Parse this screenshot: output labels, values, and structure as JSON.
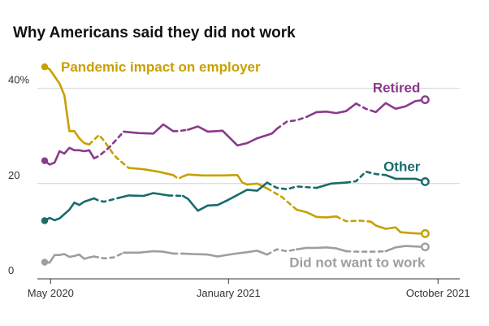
{
  "chart_data": {
    "type": "line",
    "title": "Why Americans said they did not work",
    "xlabel": "",
    "ylabel": "",
    "ylim": [
      0,
      50
    ],
    "grid": true,
    "legend": "direct labels at line ends",
    "yticks": [
      {
        "value": 0,
        "label": "0"
      },
      {
        "value": 20,
        "label": "20"
      },
      {
        "value": 40,
        "label": "40%"
      }
    ],
    "xticks": [
      {
        "week": 1.2,
        "label": "May 2020"
      },
      {
        "week": 37.2,
        "label": "January 2021"
      },
      {
        "week": 79.6,
        "label": "October 2021"
      }
    ],
    "xlim": [
      0,
      84
    ],
    "series": [
      {
        "name": "Pandemic impact on employer",
        "color": "#c9a000",
        "labelAt": "start",
        "points": [
          [
            0,
            44.5
          ],
          [
            1,
            44
          ],
          [
            2,
            42.5
          ],
          [
            3,
            41
          ],
          [
            4,
            38.5
          ],
          [
            5,
            31
          ],
          [
            6,
            31
          ],
          [
            7,
            29.5
          ],
          [
            8,
            28.5
          ],
          [
            9,
            28.2
          ],
          [
            11,
            30.2
          ],
          [
            12,
            29
          ],
          [
            13,
            27.5
          ],
          [
            14,
            26
          ],
          [
            15,
            25
          ],
          [
            17,
            23.3
          ],
          [
            20,
            23
          ],
          [
            23,
            22.5
          ],
          [
            26,
            21.8
          ],
          [
            27,
            21
          ],
          [
            28,
            21.5
          ],
          [
            29,
            21.9
          ],
          [
            32,
            21.7
          ],
          [
            36,
            21.7
          ],
          [
            39,
            21.8
          ],
          [
            40,
            20.2
          ],
          [
            41,
            19.8
          ],
          [
            43,
            20
          ],
          [
            45,
            19
          ],
          [
            48,
            17.2
          ],
          [
            51,
            14.5
          ],
          [
            53,
            14
          ],
          [
            55,
            13
          ],
          [
            57,
            12.9
          ],
          [
            59,
            13.1
          ],
          [
            61,
            12.1
          ],
          [
            64,
            12.2
          ],
          [
            66,
            12
          ],
          [
            67,
            11.2
          ],
          [
            69,
            10.5
          ],
          [
            71,
            10.8
          ],
          [
            72,
            9.8
          ],
          [
            74,
            9.6
          ],
          [
            76,
            9.5
          ],
          [
            77,
            9.5
          ]
        ],
        "dashed": [
          [
            9,
            17
          ],
          [
            26,
            28
          ],
          [
            46,
            50
          ],
          [
            60,
            66
          ]
        ]
      },
      {
        "name": "Retired",
        "color": "#8a3a8c",
        "labelAt": "end",
        "points": [
          [
            0,
            24.8
          ],
          [
            1,
            24
          ],
          [
            2,
            24.4
          ],
          [
            3,
            26.8
          ],
          [
            4,
            26.3
          ],
          [
            5,
            27.5
          ],
          [
            6,
            27
          ],
          [
            7,
            27
          ],
          [
            8,
            26.8
          ],
          [
            9,
            27
          ],
          [
            10,
            25.3
          ],
          [
            11,
            25.8
          ],
          [
            13,
            27.5
          ],
          [
            16,
            30.9
          ],
          [
            19,
            30.6
          ],
          [
            22,
            30.5
          ],
          [
            24,
            32.4
          ],
          [
            26,
            31
          ],
          [
            27,
            31
          ],
          [
            29,
            31.3
          ],
          [
            31,
            32
          ],
          [
            33,
            30.9
          ],
          [
            36,
            31.1
          ],
          [
            39,
            28
          ],
          [
            41,
            28.5
          ],
          [
            43,
            29.5
          ],
          [
            46,
            30.5
          ],
          [
            47,
            31.5
          ],
          [
            49,
            33
          ],
          [
            51,
            33.3
          ],
          [
            53,
            34
          ],
          [
            55,
            35
          ],
          [
            57,
            35.1
          ],
          [
            59,
            34.8
          ],
          [
            61,
            35.2
          ],
          [
            63,
            36.8
          ],
          [
            65,
            35.7
          ],
          [
            67,
            35
          ],
          [
            69,
            36.9
          ],
          [
            71,
            35.7
          ],
          [
            73,
            36.2
          ],
          [
            75,
            37.3
          ],
          [
            77,
            37.6
          ]
        ],
        "dashed": [
          [
            10,
            15
          ],
          [
            26,
            28
          ],
          [
            47,
            52
          ],
          [
            63,
            67
          ]
        ]
      },
      {
        "name": "Other",
        "color": "#1a6b6b",
        "labelAt": "end",
        "points": [
          [
            0,
            12.2
          ],
          [
            1,
            12.8
          ],
          [
            2,
            12.3
          ],
          [
            3,
            12.7
          ],
          [
            5,
            14.5
          ],
          [
            6,
            16
          ],
          [
            7,
            15.5
          ],
          [
            8,
            16.2
          ],
          [
            10,
            16.9
          ],
          [
            11,
            16.4
          ],
          [
            12,
            16.2
          ],
          [
            15,
            17
          ],
          [
            17,
            17.5
          ],
          [
            20,
            17.4
          ],
          [
            22,
            18
          ],
          [
            25,
            17.5
          ],
          [
            28,
            17.4
          ],
          [
            29,
            16.8
          ],
          [
            31,
            14.3
          ],
          [
            33,
            15.4
          ],
          [
            35,
            15.5
          ],
          [
            37,
            16.5
          ],
          [
            41,
            18.7
          ],
          [
            43,
            18.5
          ],
          [
            45,
            20.2
          ],
          [
            47,
            19.1
          ],
          [
            49,
            18.8
          ],
          [
            51,
            19.4
          ],
          [
            55,
            19.1
          ],
          [
            58,
            20
          ],
          [
            61,
            20.2
          ],
          [
            63,
            20.5
          ],
          [
            65,
            22.5
          ],
          [
            67,
            22
          ],
          [
            69,
            21.8
          ],
          [
            71,
            21
          ],
          [
            73,
            21
          ],
          [
            75,
            21
          ],
          [
            77,
            20.4
          ]
        ],
        "dashed": [
          [
            10,
            15
          ],
          [
            26,
            28
          ],
          [
            46,
            53
          ],
          [
            62,
            68
          ]
        ]
      },
      {
        "name": "Did not want to work",
        "color": "#9e9e9e",
        "labelAt": "end",
        "points": [
          [
            0,
            3.5
          ],
          [
            1,
            3.4
          ],
          [
            2,
            5
          ],
          [
            3,
            5
          ],
          [
            4,
            5.2
          ],
          [
            5,
            4.6
          ],
          [
            6,
            4.8
          ],
          [
            7,
            5.1
          ],
          [
            8,
            4.2
          ],
          [
            9,
            4.5
          ],
          [
            10,
            4.7
          ],
          [
            12,
            4.3
          ],
          [
            14,
            4.5
          ],
          [
            16,
            5.5
          ],
          [
            19,
            5.5
          ],
          [
            22,
            5.8
          ],
          [
            24,
            5.7
          ],
          [
            26,
            5.3
          ],
          [
            28,
            5.3
          ],
          [
            30,
            5.2
          ],
          [
            33,
            5.1
          ],
          [
            35,
            4.7
          ],
          [
            38,
            5.2
          ],
          [
            41,
            5.6
          ],
          [
            43,
            5.9
          ],
          [
            45,
            5.1
          ],
          [
            47,
            6.2
          ],
          [
            49,
            5.8
          ],
          [
            51,
            6.2
          ],
          [
            53,
            6.5
          ],
          [
            55,
            6.5
          ],
          [
            57,
            6.6
          ],
          [
            59,
            6.4
          ],
          [
            61,
            5.8
          ],
          [
            63,
            5.7
          ],
          [
            65,
            5.7
          ],
          [
            67,
            5.7
          ],
          [
            69,
            5.8
          ],
          [
            71,
            6.6
          ],
          [
            73,
            6.9
          ],
          [
            75,
            6.8
          ],
          [
            77,
            6.7
          ]
        ],
        "dashed": [
          [
            11,
            17
          ],
          [
            26,
            28
          ],
          [
            46,
            50
          ],
          [
            61,
            68
          ]
        ]
      }
    ]
  }
}
